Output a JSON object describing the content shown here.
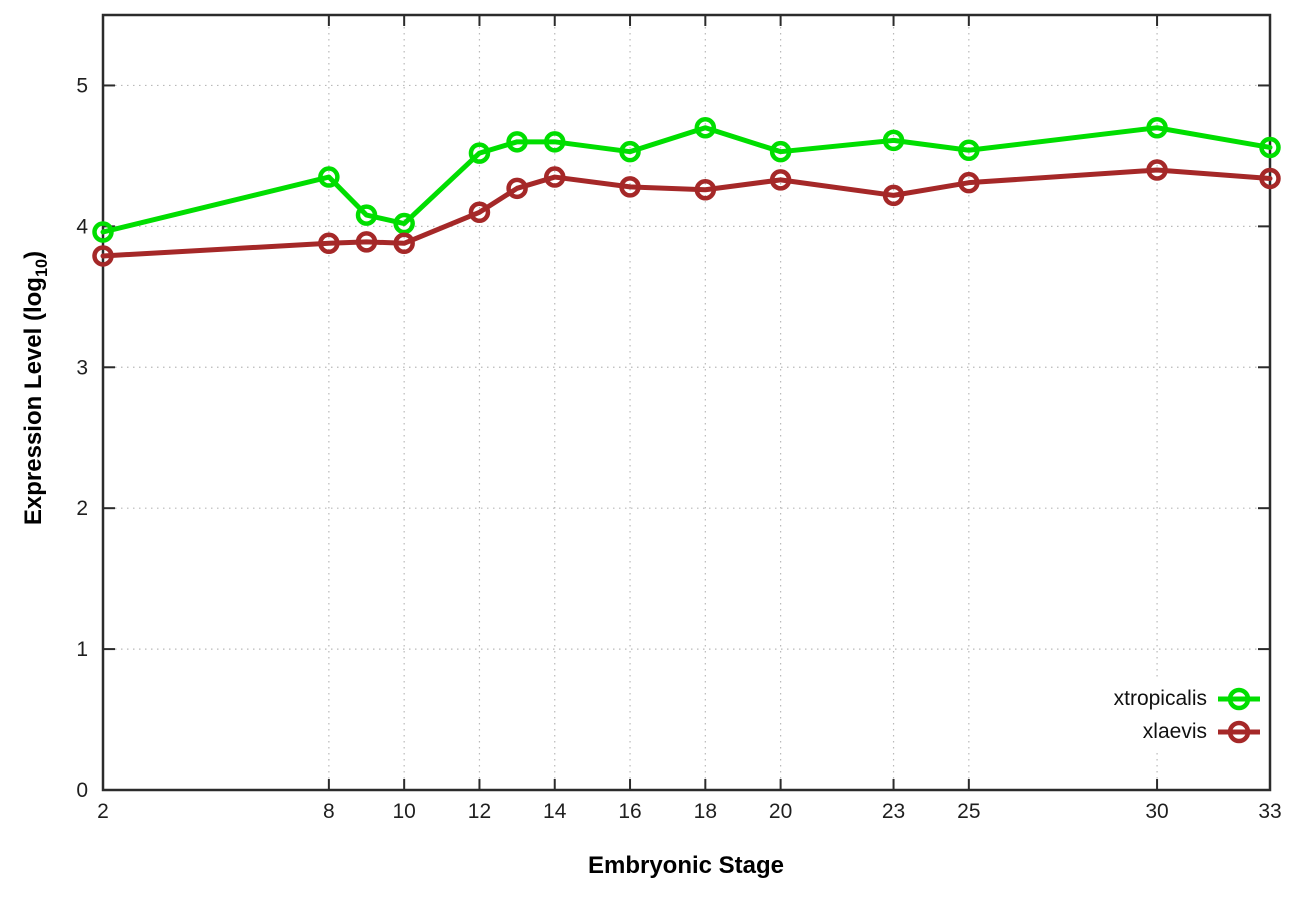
{
  "figure": {
    "xlabel": "Embryonic Stage",
    "ylabel_main": "Expression Level (log",
    "ylabel_sub": "10",
    "ylabel_close": ")"
  },
  "legend": {
    "items": [
      {
        "label": "xtropicalis",
        "color": "#00DE00"
      },
      {
        "label": "xlaevis",
        "color": "#A52828"
      }
    ]
  },
  "chart_data": {
    "type": "line",
    "title": "",
    "xlabel": "Embryonic Stage",
    "ylabel": "Expression Level (log10)",
    "x": [
      2,
      8,
      9,
      10,
      12,
      13,
      14,
      16,
      18,
      20,
      23,
      25,
      30,
      33
    ],
    "series": [
      {
        "name": "xtropicalis",
        "color": "#00DE00",
        "values": [
          3.96,
          4.35,
          4.08,
          4.02,
          4.52,
          4.6,
          4.6,
          4.53,
          4.7,
          4.53,
          4.61,
          4.54,
          4.7,
          4.56
        ]
      },
      {
        "name": "xlaevis",
        "color": "#A52828",
        "values": [
          3.79,
          3.88,
          3.89,
          3.88,
          4.1,
          4.27,
          4.35,
          4.28,
          4.26,
          4.33,
          4.22,
          4.31,
          4.4,
          4.34
        ]
      }
    ],
    "xticks": [
      2,
      8,
      10,
      12,
      14,
      16,
      18,
      20,
      23,
      25,
      30,
      33
    ],
    "yticks": [
      0,
      1,
      2,
      3,
      4,
      5
    ],
    "xlim": [
      2,
      33
    ],
    "ylim": [
      0,
      5.5
    ],
    "grid": true,
    "grid_style": "dotted",
    "legend_position": "bottom-right-inside",
    "marker": "open-circle",
    "line_width": 5
  }
}
